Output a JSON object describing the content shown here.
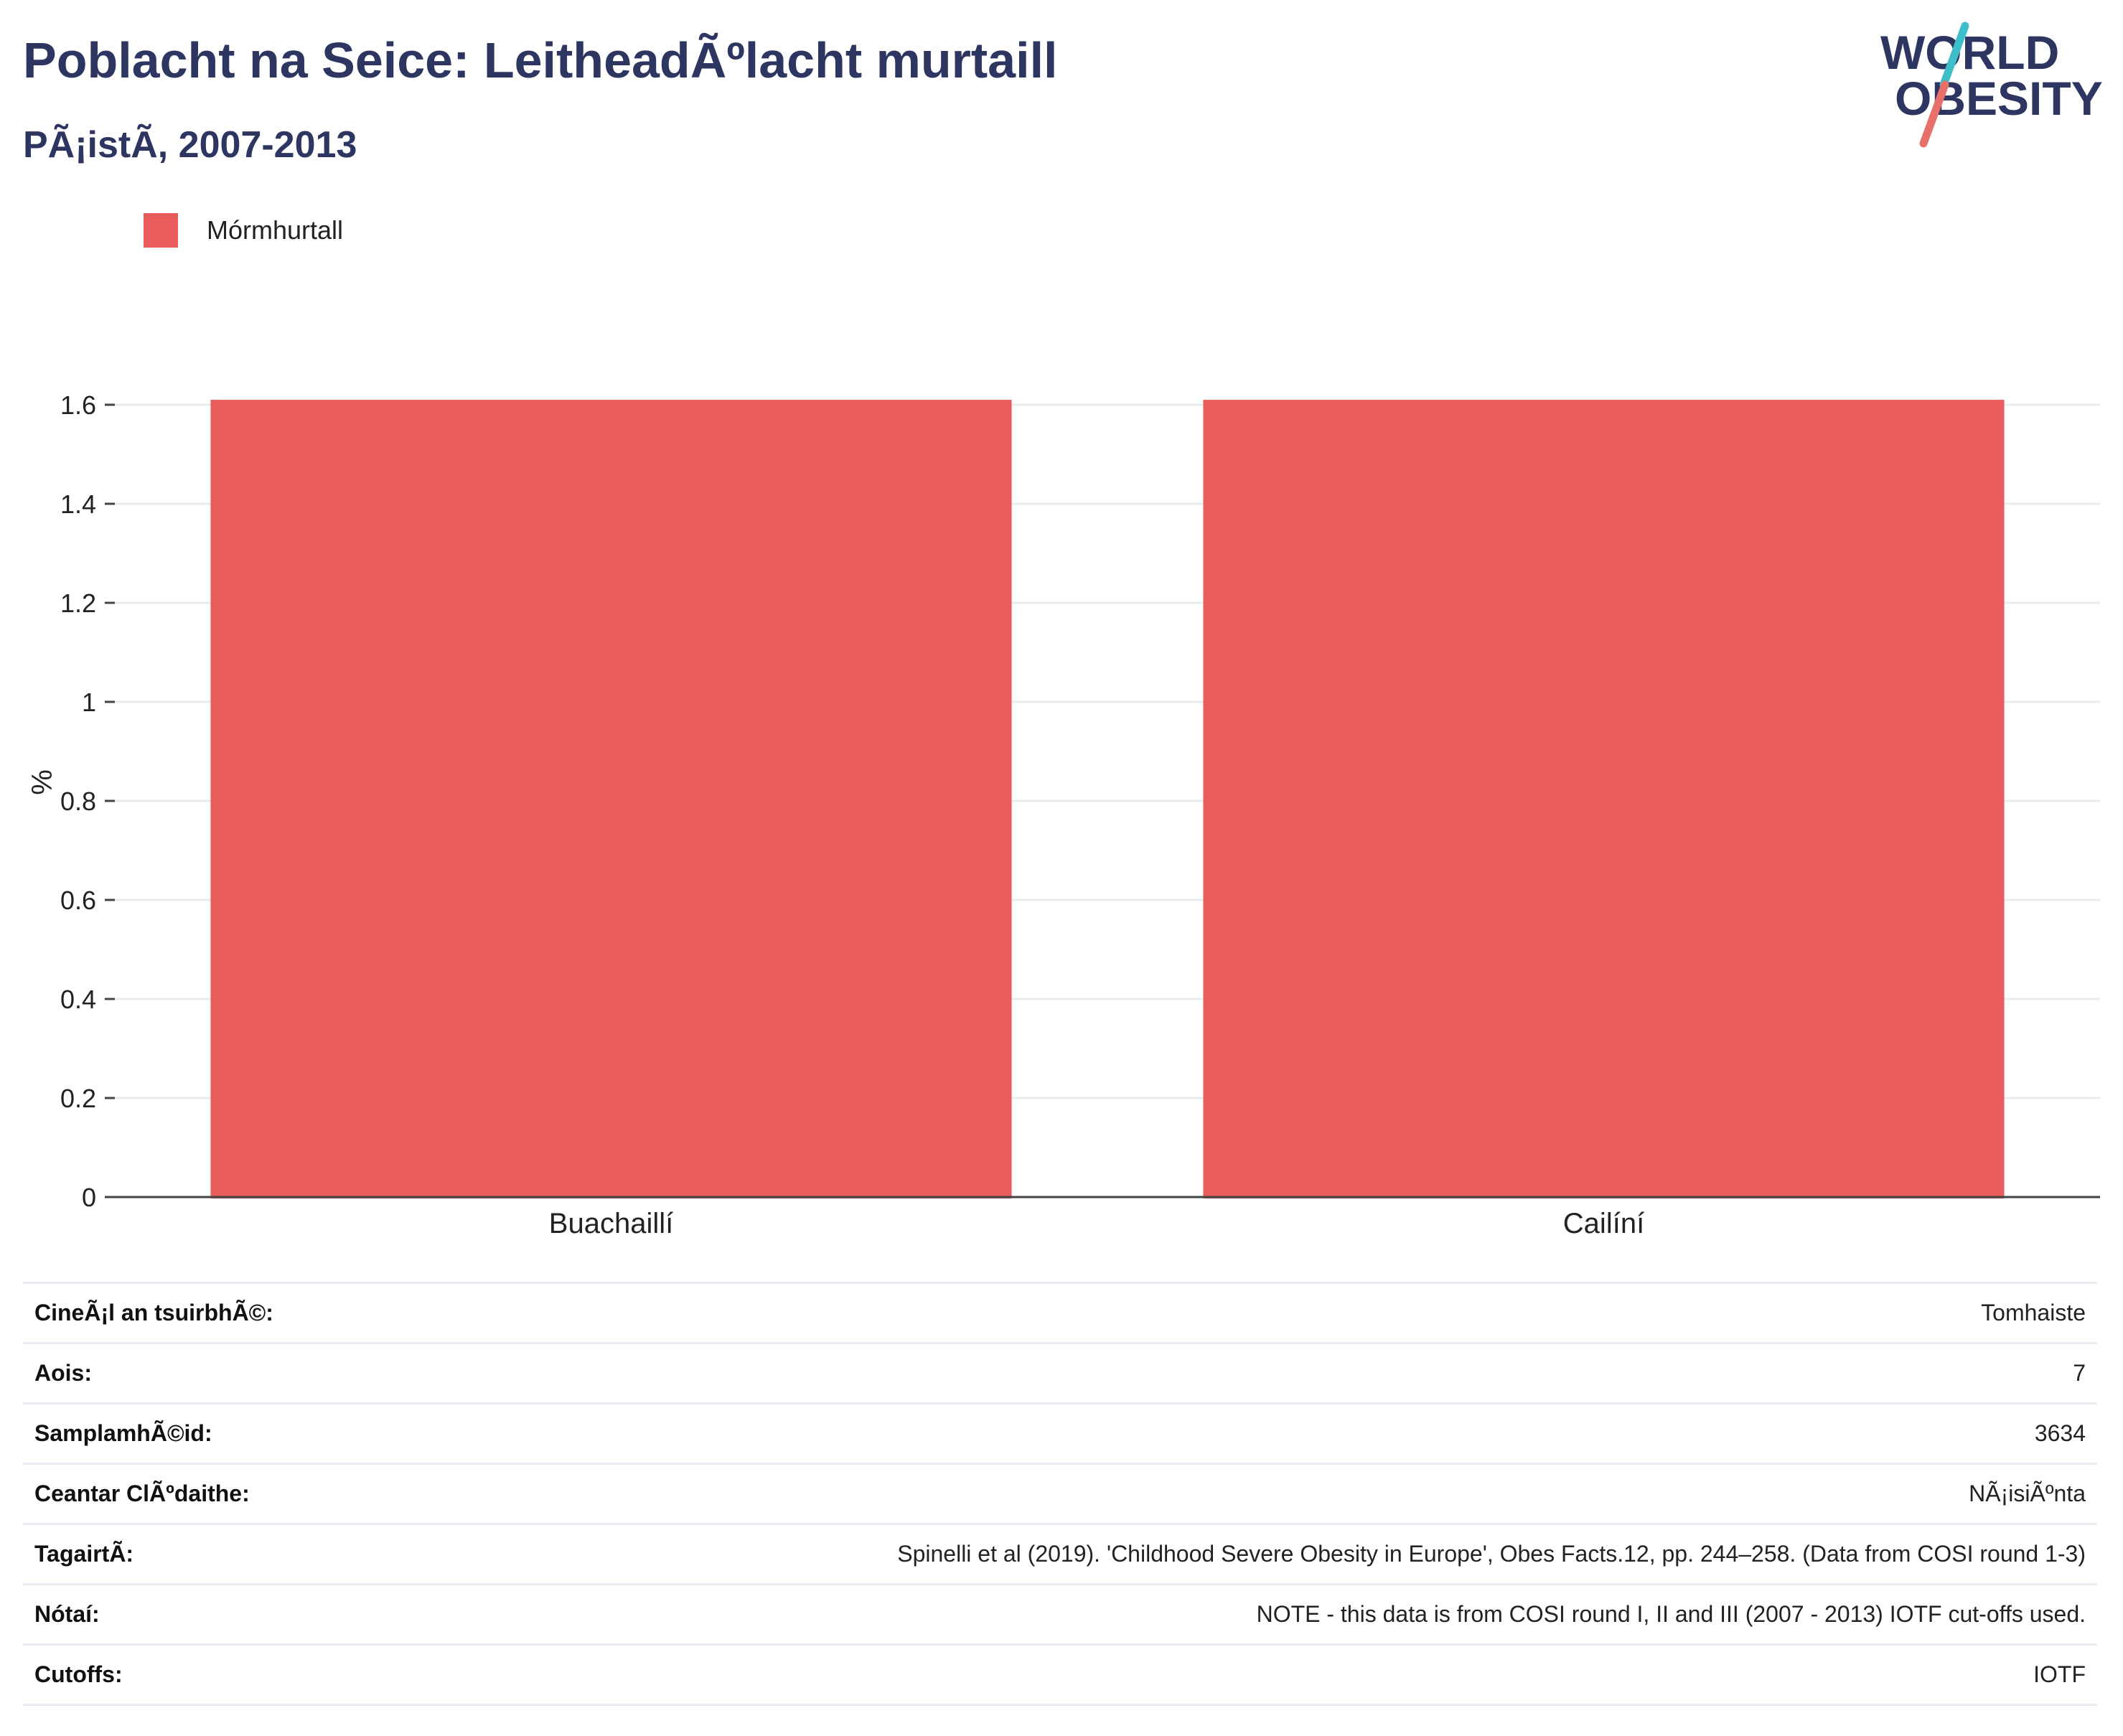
{
  "header": {
    "title": "Poblacht na Seice: LeitheadÃºlacht murtaill",
    "subtitle": "PÃ¡istÃ, 2007-2013"
  },
  "logo": {
    "line1": "WORLD",
    "line2": "OBESITY",
    "color_text": "#2d3561",
    "color_slash_top": "#3dbfc9",
    "color_slash_bottom": "#e8706a"
  },
  "chart_data": {
    "type": "bar",
    "categories": [
      "Buachaillí",
      "Cailíní"
    ],
    "series": [
      {
        "name": "Mórmhurtall",
        "values": [
          1.61,
          1.61
        ],
        "color": "#e85c5c"
      }
    ],
    "ylabel": "%",
    "xlabel": "",
    "ylim": [
      0,
      1.6
    ],
    "yticks": [
      0,
      0.2,
      0.4,
      0.6,
      0.8,
      1,
      1.2,
      1.4,
      1.6
    ],
    "grid": true,
    "legend_placement": "top-left"
  },
  "info": [
    {
      "label": "CineÃ¡l an tsuirbhÃ©:",
      "value": "Tomhaiste"
    },
    {
      "label": "Aois:",
      "value": "7"
    },
    {
      "label": "SamplamhÃ©id:",
      "value": "3634"
    },
    {
      "label": "Ceantar ClÃºdaithe:",
      "value": "NÃ¡isiÃºnta"
    },
    {
      "label": "TagairtÃ:",
      "value": "Spinelli et al (2019). 'Childhood Severe Obesity in Europe', Obes Facts.12, pp. 244–258. (Data from COSI round 1-3)"
    },
    {
      "label": "Nótaí:",
      "value": "NOTE - this data is from COSI round I, II and III (2007 - 2013) IOTF cut-offs used."
    },
    {
      "label": "Cutoffs:",
      "value": "IOTF"
    }
  ]
}
